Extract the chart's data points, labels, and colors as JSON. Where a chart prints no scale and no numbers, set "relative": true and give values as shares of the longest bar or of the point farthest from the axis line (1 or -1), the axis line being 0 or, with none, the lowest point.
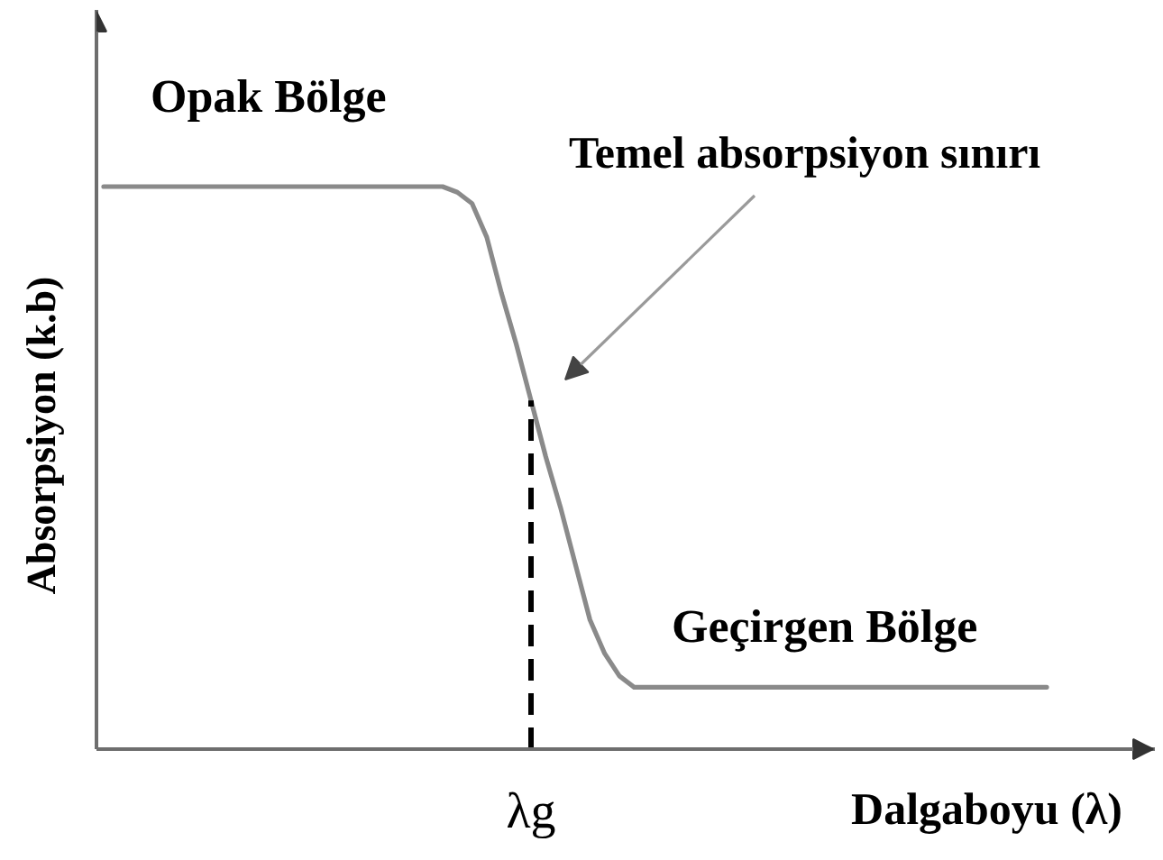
{
  "chart_data": {
    "type": "line",
    "xlabel": "Dalgaboyu (λ)",
    "ylabel": "Absorpsiyon (k.b)",
    "relative": true,
    "categories": [
      null,
      null,
      null,
      null,
      null,
      null,
      null,
      null,
      null,
      null,
      null,
      null,
      null,
      null,
      null,
      null,
      null,
      null,
      null,
      null,
      null,
      null,
      null,
      null,
      null,
      null,
      null,
      null,
      null,
      null,
      null,
      null,
      null,
      null,
      null,
      null,
      null,
      null,
      null,
      null,
      null,
      null,
      null,
      null,
      null,
      null,
      null,
      null,
      null,
      null,
      null,
      null,
      null,
      null,
      null,
      null,
      null,
      null,
      null,
      null,
      null,
      null,
      null,
      null,
      null
    ],
    "series": [
      {
        "color": "#8a8a8a",
        "values": [
          1,
          1,
          1,
          1,
          1,
          1,
          1,
          1,
          1,
          1,
          1,
          1,
          1,
          1,
          1,
          1,
          1,
          1,
          1,
          1,
          1,
          1,
          1,
          1,
          0.99,
          0.97,
          0.91,
          0.81,
          0.72,
          0.62,
          0.52,
          0.43,
          0.33,
          0.23,
          0.17,
          0.13,
          0.11,
          0.11,
          0.11,
          0.11,
          0.11,
          0.11,
          0.11,
          0.11,
          0.11,
          0.11,
          0.11,
          0.11,
          0.11,
          0.11,
          0.11,
          0.11,
          0.11,
          0.11,
          0.11,
          0.11,
          0.11,
          0.11,
          0.11,
          0.11,
          0.11,
          0.11,
          0.11,
          0.11,
          0.11
        ]
      }
    ],
    "annotations": [
      "Opak Bölge",
      "Temel absorpsiyon sınırı",
      "Geçirgen Bölge",
      "λg"
    ]
  }
}
